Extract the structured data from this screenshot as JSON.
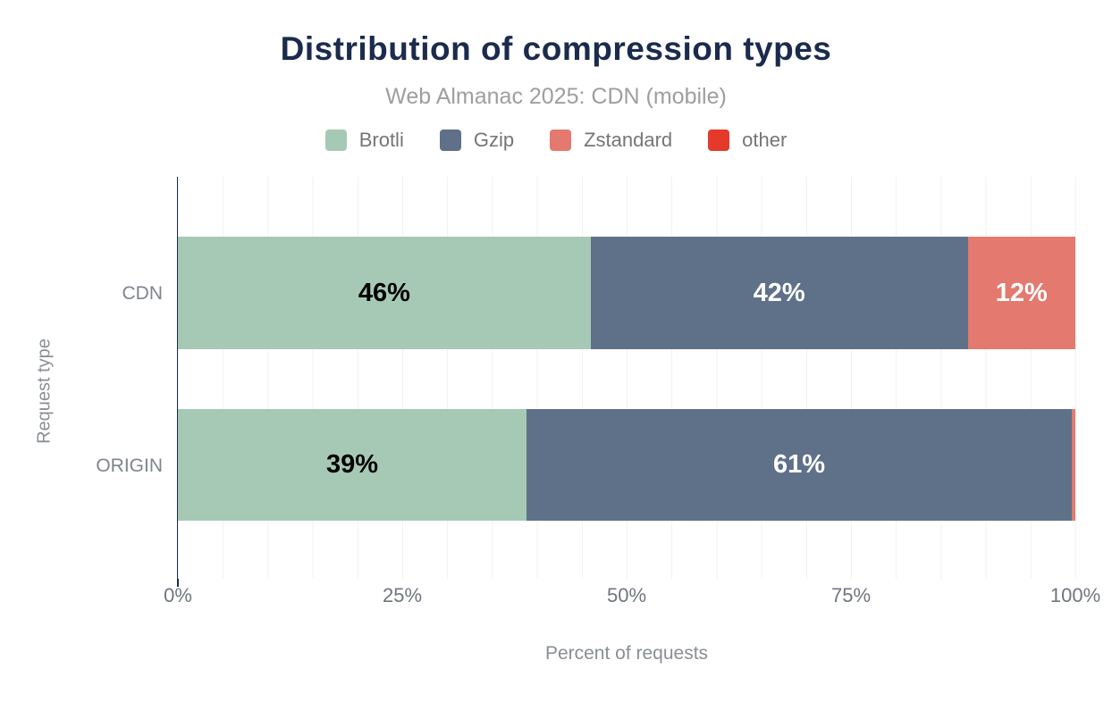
{
  "page": {
    "background_color": "#ffffff",
    "accent_navy": "#1b2b4d"
  },
  "chart_data": {
    "type": "bar",
    "variant": "horizontal-stacked",
    "title": "Distribution of compression types",
    "subtitle": "Web Almanac 2025: CDN (mobile)",
    "xlabel": "Percent of requests",
    "ylabel": "Request type",
    "categories": [
      "CDN",
      "ORIGIN"
    ],
    "series": [
      {
        "name": "Brotli",
        "color": "#a6c9b5",
        "label_color": "#000000",
        "values": [
          46,
          39
        ],
        "labels": [
          "46%",
          "39%"
        ]
      },
      {
        "name": "Gzip",
        "color": "#5f7189",
        "label_color": "#ffffff",
        "values": [
          42,
          61
        ],
        "labels": [
          "42%",
          "61%"
        ]
      },
      {
        "name": "Zstandard",
        "color": "#e3796f",
        "label_color": "#ffffff",
        "values": [
          12,
          0.4
        ],
        "labels": [
          "12%",
          ""
        ]
      },
      {
        "name": "other",
        "color": "#e4392b",
        "label_color": "#ffffff",
        "values": [
          0,
          0
        ],
        "labels": [
          "",
          ""
        ]
      }
    ],
    "x_ticks": [
      "0%",
      "25%",
      "50%",
      "75%",
      "100%"
    ],
    "xlim": [
      0,
      100
    ],
    "grid": true,
    "grid_interval_percent": 5,
    "legend_position": "top"
  }
}
